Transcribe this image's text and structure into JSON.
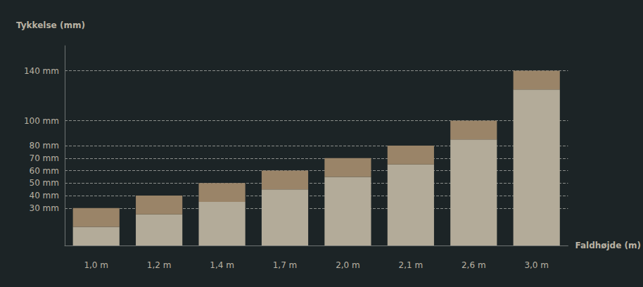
{
  "chart_data": {
    "type": "bar",
    "ylabel": "Tykkelse (mm)",
    "xlabel": "Faldhøjde (m)",
    "categories": [
      "1,0 m",
      "1,2 m",
      "1,4 m",
      "1,7 m",
      "2,0 m",
      "2,1 m",
      "2,6 m",
      "3,0 m"
    ],
    "series": [
      {
        "color": "#b3ab99",
        "values": [
          15,
          25,
          35,
          45,
          55,
          65,
          85,
          125
        ]
      },
      {
        "color": "#9a8468",
        "values": [
          15,
          15,
          15,
          15,
          15,
          15,
          15,
          15
        ]
      }
    ],
    "stacked": true,
    "ylim": [
      0,
      160
    ],
    "yticks": [
      {
        "value": 30,
        "label": "30 mm"
      },
      {
        "value": 40,
        "label": "40 mm"
      },
      {
        "value": 50,
        "label": "50 mm"
      },
      {
        "value": 60,
        "label": "60 mm"
      },
      {
        "value": 70,
        "label": "70 mm"
      },
      {
        "value": 80,
        "label": "80 mm"
      },
      {
        "value": 100,
        "label": "100 mm"
      },
      {
        "value": 140,
        "label": "140 mm"
      }
    ],
    "grid": true,
    "data_labels": false
  }
}
